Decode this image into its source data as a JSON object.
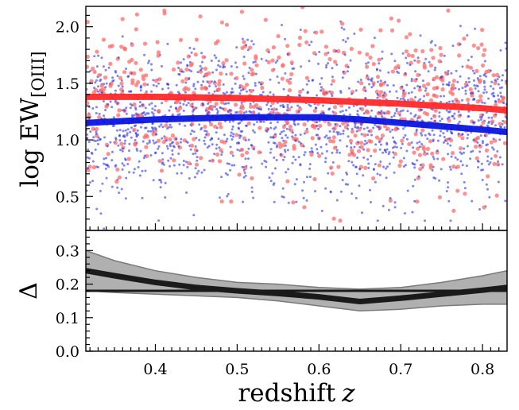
{
  "chart_data": [
    {
      "type": "scatter",
      "panel": "top",
      "ylabel": "log EW",
      "ylabel_subscript": "[OIII]",
      "xlim": [
        0.315,
        0.83
      ],
      "ylim": [
        0.2,
        2.18
      ],
      "yticks": [
        0.5,
        1.0,
        1.5,
        2.0
      ],
      "ytick_labels": [
        "0.5",
        "1.0",
        "1.5",
        "2.0"
      ],
      "grid": false,
      "legend": "none",
      "series": [
        {
          "color": "#ff2a2a",
          "kind": "trend-line",
          "x": [
            0.315,
            0.4,
            0.5,
            0.6,
            0.7,
            0.8,
            0.83
          ],
          "y": [
            1.38,
            1.38,
            1.37,
            1.35,
            1.32,
            1.28,
            1.26
          ]
        },
        {
          "color": "#0a16e0",
          "kind": "trend-line",
          "x": [
            0.315,
            0.4,
            0.5,
            0.55,
            0.6,
            0.65,
            0.7,
            0.75,
            0.8,
            0.83
          ],
          "y": [
            1.15,
            1.18,
            1.2,
            1.2,
            1.2,
            1.18,
            1.15,
            1.12,
            1.09,
            1.07
          ]
        },
        {
          "color": "#ff6b6b",
          "kind": "scatter-cloud",
          "note": "individual galaxies, approximate spread",
          "center_y": 1.3,
          "spread_y": 0.35
        },
        {
          "color": "#2a36e6",
          "kind": "scatter-cloud",
          "note": "individual galaxies, approximate spread",
          "center_y": 1.15,
          "spread_y": 0.33
        }
      ]
    },
    {
      "type": "line",
      "panel": "bottom",
      "ylabel": "Δ",
      "xlabel": "redshift",
      "xlabel_var": "z",
      "xlim": [
        0.315,
        0.83
      ],
      "ylim": [
        0.0,
        0.36
      ],
      "yticks": [
        0.0,
        0.1,
        0.2,
        0.3
      ],
      "ytick_labels": [
        "0.0",
        "0.1",
        "0.2",
        "0.3"
      ],
      "xticks": [
        0.4,
        0.5,
        0.6,
        0.7,
        0.8
      ],
      "xtick_labels": [
        "0.4",
        "0.5",
        "0.6",
        "0.7",
        "0.8"
      ],
      "reference_line": 0.18,
      "series": [
        {
          "color": "#1a1a1a",
          "x": [
            0.315,
            0.35,
            0.4,
            0.45,
            0.5,
            0.55,
            0.6,
            0.65,
            0.7,
            0.75,
            0.8,
            0.83
          ],
          "y": [
            0.24,
            0.225,
            0.205,
            0.19,
            0.18,
            0.172,
            0.162,
            0.148,
            0.158,
            0.17,
            0.182,
            0.19
          ],
          "band_upper": [
            0.3,
            0.27,
            0.24,
            0.22,
            0.205,
            0.2,
            0.19,
            0.185,
            0.19,
            0.205,
            0.225,
            0.24
          ],
          "band_lower": [
            0.18,
            0.175,
            0.17,
            0.165,
            0.16,
            0.15,
            0.135,
            0.12,
            0.125,
            0.135,
            0.14,
            0.14
          ]
        }
      ]
    }
  ],
  "colors": {
    "red_line": "#ff2a2a",
    "blue_line": "#0a16e0",
    "band": "#b0b0b0",
    "band_edge": "#7a7a7a",
    "delta_line": "#1a1a1a"
  }
}
